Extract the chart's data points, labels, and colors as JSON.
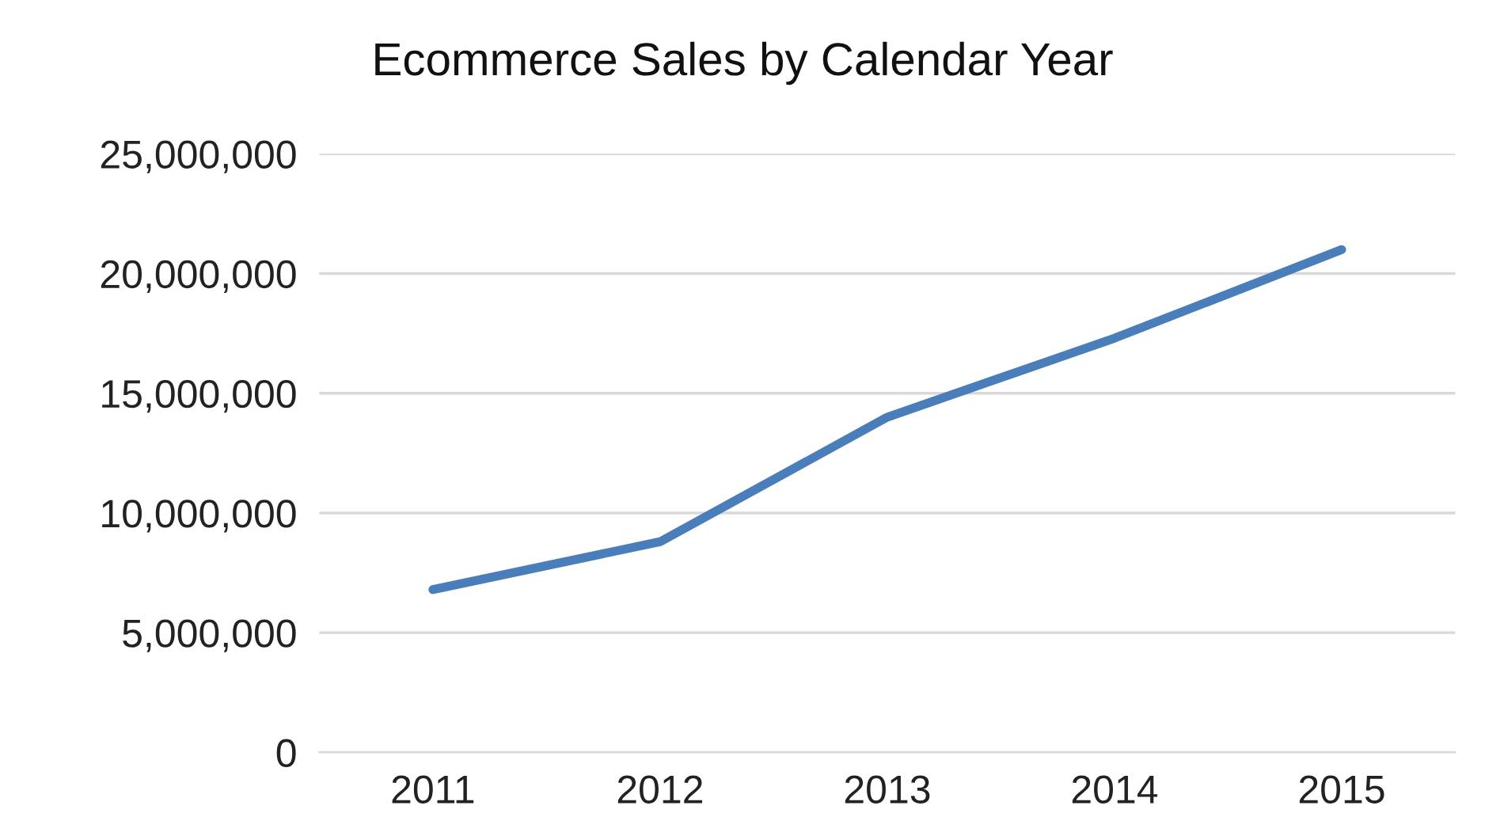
{
  "chart_data": {
    "type": "line",
    "title": "Ecommerce Sales by Calendar Year",
    "categories": [
      "2011",
      "2012",
      "2013",
      "2014",
      "2015"
    ],
    "series": [
      {
        "color": "#4a7ebb",
        "values": [
          6800000,
          8800000,
          14000000,
          17300000,
          21000000
        ]
      }
    ],
    "ylim": [
      0,
      25000000
    ],
    "yticks": [
      {
        "value": 0,
        "label": "0"
      },
      {
        "value": 5000000,
        "label": "5,000,000"
      },
      {
        "value": 10000000,
        "label": "10,000,000"
      },
      {
        "value": 15000000,
        "label": "15,000,000"
      },
      {
        "value": 20000000,
        "label": "20,000,000"
      },
      {
        "value": 25000000,
        "label": "25,000,000"
      }
    ],
    "grid": "y",
    "marker": "none",
    "line_style": "solid"
  }
}
